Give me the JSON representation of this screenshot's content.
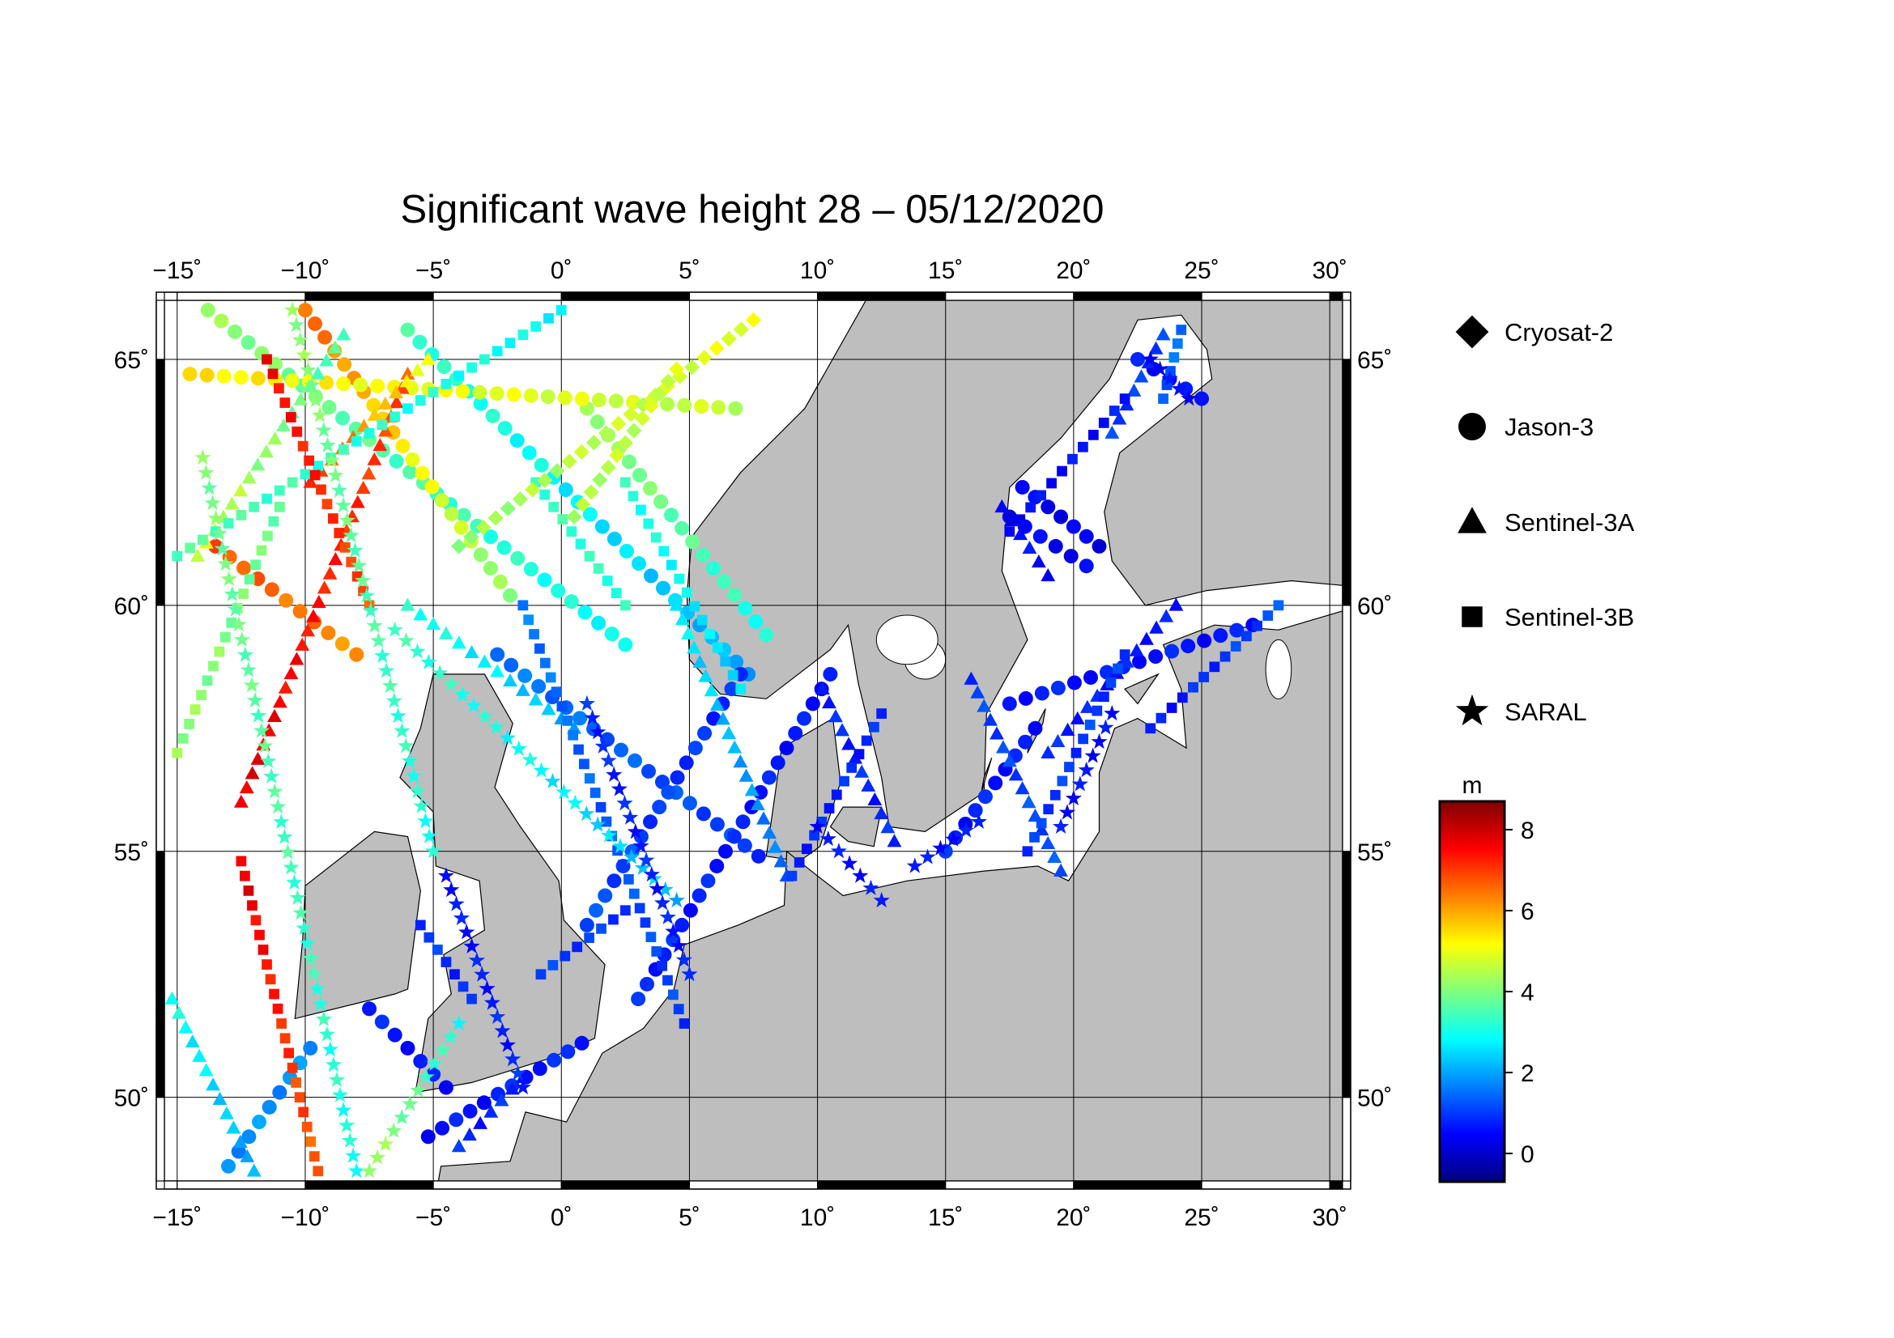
{
  "title": "Significant wave height 28 – 05/12/2020",
  "map": {
    "lon_range": [
      -15.5,
      30.5
    ],
    "lat_range": [
      48.3,
      66.2
    ],
    "lon_ticks": [
      "−15˚",
      "−10˚",
      "−5˚",
      "0˚",
      "5˚",
      "10˚",
      "15˚",
      "20˚",
      "25˚",
      "30˚"
    ],
    "lat_ticks": [
      "50˚",
      "55˚",
      "60˚",
      "65˚"
    ],
    "land_color": "#bebebe",
    "sea_color": "#ffffff",
    "grid": true
  },
  "legend": {
    "items": [
      {
        "name": "Cryosat-2",
        "symbol": "diamond"
      },
      {
        "name": "Jason-3",
        "symbol": "circle"
      },
      {
        "name": "Sentinel-3A",
        "symbol": "triangle"
      },
      {
        "name": "Sentinel-3B",
        "symbol": "square"
      },
      {
        "name": "SARAL",
        "symbol": "star"
      }
    ]
  },
  "colorbar": {
    "unit": "m",
    "ticks": [
      "0",
      "2",
      "4",
      "6",
      "8"
    ],
    "range": [
      -0.7,
      8.7
    ],
    "colors": [
      "#00007f",
      "#0000ff",
      "#007fff",
      "#00ffff",
      "#7fff7f",
      "#ffff00",
      "#ff7f00",
      "#ff0000",
      "#7f0000"
    ]
  },
  "chart_data": {
    "type": "scatter",
    "xlabel": "",
    "ylabel": "",
    "xlim": [
      -15.5,
      30.5
    ],
    "ylim": [
      48.3,
      66.2
    ],
    "color_variable": "significant wave height (m)",
    "tracks": [
      {
        "series": "Jason-3",
        "lon": [
          -13.8,
          2.5
        ],
        "lat": [
          66.0,
          59.2
        ],
        "h": [
          4.2,
          2.8
        ]
      },
      {
        "series": "Jason-3",
        "lon": [
          -6.0,
          7.3
        ],
        "lat": [
          65.6,
          58.6
        ],
        "h": [
          3.4,
          2.0
        ]
      },
      {
        "series": "Jason-3",
        "lon": [
          1.0,
          8.0
        ],
        "lat": [
          64.0,
          59.4
        ],
        "h": [
          4.4,
          3.0
        ]
      },
      {
        "series": "Jason-3",
        "lon": [
          -10.0,
          -2.0
        ],
        "lat": [
          66.0,
          60.2
        ],
        "h": [
          6.6,
          4.0
        ]
      },
      {
        "series": "Jason-3",
        "lon": [
          -14.5,
          6.8
        ],
        "lat": [
          64.7,
          64.0
        ],
        "h": [
          5.4,
          4.6
        ]
      },
      {
        "series": "Jason-3",
        "lon": [
          -13.5,
          -8.0
        ],
        "lat": [
          61.2,
          59.0
        ],
        "h": [
          6.8,
          6.2
        ]
      },
      {
        "series": "Jason-3",
        "lon": [
          -2.5,
          7.7
        ],
        "lat": [
          59.0,
          54.9
        ],
        "h": [
          1.6,
          1.0
        ]
      },
      {
        "series": "Jason-3",
        "lon": [
          1.0,
          7.0
        ],
        "lat": [
          53.5,
          58.6
        ],
        "h": [
          1.2,
          0.8
        ]
      },
      {
        "series": "Jason-3",
        "lon": [
          3.0,
          10.5
        ],
        "lat": [
          52.0,
          58.6
        ],
        "h": [
          0.8,
          0.6
        ]
      },
      {
        "series": "Jason-3",
        "lon": [
          -13.0,
          -9.8
        ],
        "lat": [
          48.6,
          51.0
        ],
        "h": [
          1.8,
          1.8
        ]
      },
      {
        "series": "Jason-3",
        "lon": [
          -5.2,
          0.8
        ],
        "lat": [
          49.2,
          51.1
        ],
        "h": [
          0.6,
          0.8
        ]
      },
      {
        "series": "Jason-3",
        "lon": [
          -7.5,
          -4.5
        ],
        "lat": [
          51.8,
          50.2
        ],
        "h": [
          0.7,
          0.6
        ]
      },
      {
        "series": "Jason-3",
        "lon": [
          15.0,
          18.5
        ],
        "lat": [
          55.0,
          57.5
        ],
        "h": [
          0.8,
          0.6
        ]
      },
      {
        "series": "Jason-3",
        "lon": [
          17.5,
          27.0
        ],
        "lat": [
          58.0,
          59.6
        ],
        "h": [
          0.7,
          0.6
        ]
      },
      {
        "series": "Jason-3",
        "lon": [
          17.5,
          20.5
        ],
        "lat": [
          61.8,
          60.8
        ],
        "h": [
          0.4,
          0.4
        ]
      },
      {
        "series": "Jason-3",
        "lon": [
          18.0,
          21.0
        ],
        "lat": [
          62.4,
          61.2
        ],
        "h": [
          0.4,
          0.3
        ]
      },
      {
        "series": "Jason-3",
        "lon": [
          22.5,
          25.0
        ],
        "lat": [
          65.0,
          64.2
        ],
        "h": [
          0.6,
          0.5
        ]
      },
      {
        "series": "Sentinel-3A",
        "lon": [
          -12.5,
          -6.0
        ],
        "lat": [
          56.0,
          64.7
        ],
        "h": [
          7.8,
          6.8
        ]
      },
      {
        "series": "Sentinel-3A",
        "lon": [
          -14.2,
          -8.5
        ],
        "lat": [
          61.0,
          65.5
        ],
        "h": [
          4.8,
          3.4
        ]
      },
      {
        "series": "Sentinel-3A",
        "lon": [
          -9.8,
          -5.2
        ],
        "lat": [
          62.5,
          65.0
        ],
        "h": [
          7.0,
          5.0
        ]
      },
      {
        "series": "Sentinel-3A",
        "lon": [
          -6.0,
          0.5
        ],
        "lat": [
          60.0,
          57.5
        ],
        "h": [
          3.2,
          2.0
        ]
      },
      {
        "series": "Sentinel-3A",
        "lon": [
          4.5,
          8.8
        ],
        "lat": [
          60.0,
          54.5
        ],
        "h": [
          2.8,
          1.4
        ]
      },
      {
        "series": "Sentinel-3A",
        "lon": [
          -15.2,
          -12.0
        ],
        "lat": [
          52.0,
          48.5
        ],
        "h": [
          3.0,
          2.0
        ]
      },
      {
        "series": "Sentinel-3A",
        "lon": [
          -4.0,
          -1.5
        ],
        "lat": [
          49.0,
          50.4
        ],
        "h": [
          0.8,
          0.8
        ]
      },
      {
        "series": "Sentinel-3A",
        "lon": [
          17.2,
          19.0
        ],
        "lat": [
          62.0,
          60.6
        ],
        "h": [
          0.5,
          0.5
        ]
      },
      {
        "series": "Sentinel-3A",
        "lon": [
          16.0,
          19.5
        ],
        "lat": [
          58.5,
          54.6
        ],
        "h": [
          1.0,
          1.2
        ]
      },
      {
        "series": "Sentinel-3A",
        "lon": [
          19.0,
          24.0
        ],
        "lat": [
          57.0,
          60.0
        ],
        "h": [
          0.8,
          0.6
        ]
      },
      {
        "series": "Sentinel-3A",
        "lon": [
          21.5,
          23.5
        ],
        "lat": [
          63.5,
          65.5
        ],
        "h": [
          1.0,
          1.0
        ]
      },
      {
        "series": "Sentinel-3A",
        "lon": [
          10.2,
          13.0
        ],
        "lat": [
          58.3,
          55.2
        ],
        "h": [
          0.8,
          0.8
        ]
      },
      {
        "series": "Sentinel-3B",
        "lon": [
          -15.0,
          0.0
        ],
        "lat": [
          61.0,
          66.0
        ],
        "h": [
          3.6,
          2.8
        ]
      },
      {
        "series": "Sentinel-3B",
        "lon": [
          -11.5,
          -7.5
        ],
        "lat": [
          65.0,
          60.0
        ],
        "h": [
          7.6,
          6.8
        ]
      },
      {
        "series": "Sentinel-3B",
        "lon": [
          -15.0,
          -11.0
        ],
        "lat": [
          57.0,
          62.0
        ],
        "h": [
          4.2,
          3.8
        ]
      },
      {
        "series": "Sentinel-3B",
        "lon": [
          -12.5,
          -9.5
        ],
        "lat": [
          54.8,
          48.5
        ],
        "h": [
          7.8,
          6.6
        ]
      },
      {
        "series": "Sentinel-3B",
        "lon": [
          -1.5,
          4.8
        ],
        "lat": [
          60.0,
          51.5
        ],
        "h": [
          1.6,
          1.0
        ]
      },
      {
        "series": "Sentinel-3B",
        "lon": [
          2.5,
          7.0
        ],
        "lat": [
          62.5,
          58.3
        ],
        "h": [
          3.2,
          2.4
        ]
      },
      {
        "series": "Sentinel-3B",
        "lon": [
          -1.0,
          2.5
        ],
        "lat": [
          62.5,
          60.0
        ],
        "h": [
          3.4,
          3.2
        ]
      },
      {
        "series": "Sentinel-3B",
        "lon": [
          -5.5,
          -3.5
        ],
        "lat": [
          53.5,
          52.0
        ],
        "h": [
          1.0,
          0.8
        ]
      },
      {
        "series": "Sentinel-3B",
        "lon": [
          -0.8,
          2.5
        ],
        "lat": [
          52.5,
          53.8
        ],
        "h": [
          1.0,
          1.0
        ]
      },
      {
        "series": "Sentinel-3B",
        "lon": [
          9.0,
          12.5
        ],
        "lat": [
          54.5,
          57.8
        ],
        "h": [
          0.8,
          0.8
        ]
      },
      {
        "series": "Sentinel-3B",
        "lon": [
          17.5,
          22.0
        ],
        "lat": [
          61.5,
          64.2
        ],
        "h": [
          0.5,
          0.6
        ]
      },
      {
        "series": "Sentinel-3B",
        "lon": [
          18.2,
          22.0
        ],
        "lat": [
          55.0,
          59.0
        ],
        "h": [
          1.0,
          1.0
        ]
      },
      {
        "series": "Sentinel-3B",
        "lon": [
          23.0,
          28.0
        ],
        "lat": [
          57.5,
          60.0
        ],
        "h": [
          0.6,
          1.2
        ]
      },
      {
        "series": "Sentinel-3B",
        "lon": [
          23.5,
          24.2
        ],
        "lat": [
          64.2,
          65.6
        ],
        "h": [
          1.2,
          1.6
        ]
      },
      {
        "series": "Cryosat-2",
        "lon": [
          -4.0,
          7.5
        ],
        "lat": [
          61.2,
          65.8
        ],
        "h": [
          4.2,
          5.0
        ]
      },
      {
        "series": "Cryosat-2",
        "lon": [
          0.5,
          4.5
        ],
        "lat": [
          61.8,
          64.8
        ],
        "h": [
          4.4,
          4.8
        ]
      },
      {
        "series": "SARAL",
        "lon": [
          -14.0,
          -8.0
        ],
        "lat": [
          63.0,
          48.5
        ],
        "h": [
          4.0,
          3.0
        ]
      },
      {
        "series": "SARAL",
        "lon": [
          -10.5,
          -5.0
        ],
        "lat": [
          66.0,
          55.0
        ],
        "h": [
          4.2,
          3.0
        ]
      },
      {
        "series": "SARAL",
        "lon": [
          -7.5,
          -4.0
        ],
        "lat": [
          48.5,
          51.5
        ],
        "h": [
          4.4,
          3.0
        ]
      },
      {
        "series": "SARAL",
        "lon": [
          -6.5,
          4.5
        ],
        "lat": [
          59.5,
          54.0
        ],
        "h": [
          3.4,
          2.2
        ]
      },
      {
        "series": "SARAL",
        "lon": [
          1.0,
          5.0
        ],
        "lat": [
          58.0,
          52.5
        ],
        "h": [
          0.8,
          0.7
        ]
      },
      {
        "series": "SARAL",
        "lon": [
          -4.5,
          -1.5
        ],
        "lat": [
          54.5,
          50.2
        ],
        "h": [
          0.6,
          0.8
        ]
      },
      {
        "series": "SARAL",
        "lon": [
          10.0,
          12.5
        ],
        "lat": [
          55.5,
          54.0
        ],
        "h": [
          0.6,
          0.6
        ]
      },
      {
        "series": "SARAL",
        "lon": [
          13.8,
          16.3
        ],
        "lat": [
          54.7,
          55.6
        ],
        "h": [
          0.6,
          0.6
        ]
      },
      {
        "series": "SARAL",
        "lon": [
          19.5,
          21.5
        ],
        "lat": [
          55.5,
          57.8
        ],
        "h": [
          0.6,
          0.5
        ]
      },
      {
        "series": "SARAL",
        "lon": [
          23.0,
          24.5
        ],
        "lat": [
          65.0,
          64.2
        ],
        "h": [
          0.5,
          0.5
        ]
      }
    ]
  }
}
